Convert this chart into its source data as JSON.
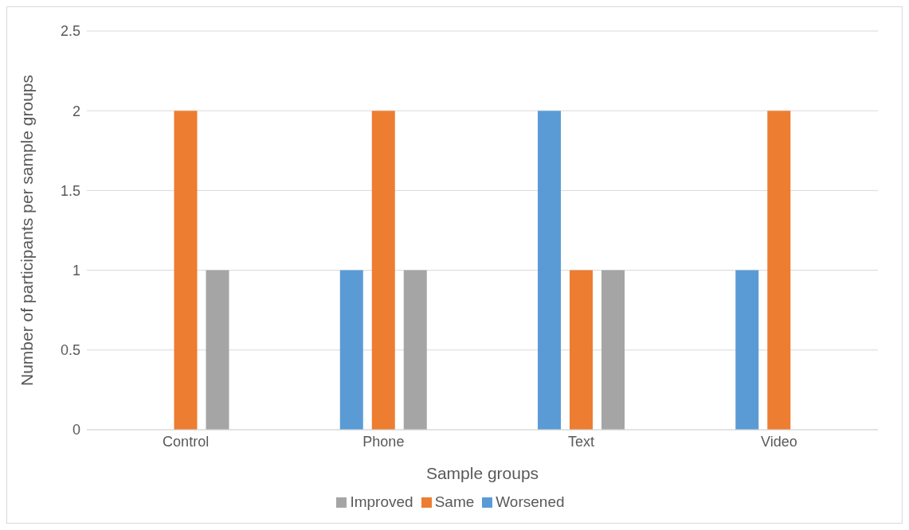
{
  "chart_data": {
    "type": "bar",
    "xlabel": "Sample groups",
    "ylabel": "Number of participants per sample groups",
    "categories": [
      "Control",
      "Phone",
      "Text",
      "Video"
    ],
    "series": [
      {
        "name": "Worsened",
        "color": "#5b9bd5",
        "values": [
          0,
          1,
          2,
          1
        ]
      },
      {
        "name": "Same",
        "color": "#ed7d31",
        "values": [
          2,
          2,
          1,
          2
        ]
      },
      {
        "name": "Improved",
        "color": "#a5a5a5",
        "values": [
          1,
          1,
          1,
          0
        ]
      }
    ],
    "ylim": [
      0,
      2.5
    ],
    "yticks": [
      0,
      0.5,
      1,
      1.5,
      2,
      2.5
    ],
    "grid": "y",
    "legend": "bottom"
  }
}
